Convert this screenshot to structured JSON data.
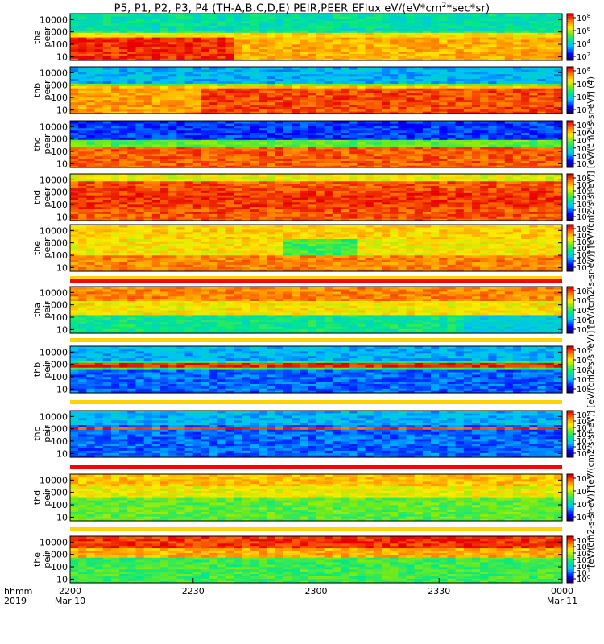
{
  "title": {
    "prefix": "P5, P1, P2, P3, P4 (TH-A,B,C,D,E) PEIR,PEER EFlux eV/(eV*cm",
    "sup": "2",
    "suffix": "*sec*sr)"
  },
  "colorbar_units": "[eV/(cm2-s-sr-eV)] [eV/(cm2-s-sr-eV)] [eV/(cm2-s-sr-eV)] [eV/(cm2-s-sr-eV)] [eV/(cm2-s-sr-eV)] [eV/(cm2-s-sr-eV)] (4)",
  "time_axis": {
    "row1_label": "hhmm",
    "row2_label": "2019",
    "ticks": [
      {
        "t": 0,
        "hhmm": "2200",
        "date": "Mar 10"
      },
      {
        "t": 30,
        "hhmm": "2230",
        "date": ""
      },
      {
        "t": 60,
        "hhmm": "2300",
        "date": ""
      },
      {
        "t": 90,
        "hhmm": "2330",
        "date": ""
      },
      {
        "t": 120,
        "hhmm": "0000",
        "date": "Mar 11"
      }
    ]
  },
  "chart_data": {
    "type": "heatmap",
    "x_units": "minutes after 2200 UT, 2019-03-10",
    "xlim": [
      0,
      120
    ],
    "ylim_eV": [
      5,
      30000
    ],
    "yscale": "log",
    "ytick_values": [
      10,
      100,
      1000,
      10000
    ],
    "ytick_labels": [
      "10",
      "100",
      "1000",
      "10000"
    ],
    "panels": [
      {
        "ylabel": [
          "tha",
          "peer"
        ],
        "cticks": [
          "10^8",
          "10^6",
          "10^4",
          "10^2"
        ],
        "profile": "peer_a"
      },
      {
        "ylabel": [
          "thb",
          "peer"
        ],
        "cticks": [
          "10^8",
          "10^6",
          "10^4",
          "10^2"
        ],
        "profile": "peer_b"
      },
      {
        "ylabel": [
          "thc",
          "peer"
        ],
        "cticks": [
          "10^8",
          "10^7",
          "10^6",
          "10^5",
          "10^4",
          "10^3"
        ],
        "profile": "peer_c"
      },
      {
        "ylabel": [
          "thd",
          "peer"
        ],
        "cticks": [
          "10^8",
          "10^7",
          "10^6",
          "10^5",
          "10^4",
          "10^3",
          "10^2"
        ],
        "profile": "peer_d"
      },
      {
        "ylabel": [
          "the",
          "peer"
        ],
        "cticks": [
          "10^8",
          "10^7",
          "10^6",
          "10^5",
          "10^4",
          "10^3",
          "10^2"
        ],
        "profile": "peer_e"
      },
      {
        "ylabel": [
          "tha",
          "peir"
        ],
        "cticks": [
          "10^8",
          "10^6",
          "10^4",
          "10^2",
          "10^0"
        ],
        "profile": "peir_a"
      },
      {
        "ylabel": [
          "thb",
          "peir"
        ],
        "cticks": [
          "10^8",
          "10^6",
          "10^4",
          "10^2",
          "10^0"
        ],
        "profile": "peir_b"
      },
      {
        "ylabel": [
          "thc",
          "peir"
        ],
        "cticks": [
          "10^7",
          "10^6",
          "10^5",
          "10^4",
          "10^3",
          "10^2",
          "10^1"
        ],
        "profile": "peir_c"
      },
      {
        "ylabel": [
          "thd",
          "peir"
        ],
        "cticks": [
          "10^8",
          "10^6",
          "10^4",
          "10^2"
        ],
        "profile": "peir_d"
      },
      {
        "ylabel": [
          "the",
          "peir"
        ],
        "cticks": [
          "10^8",
          "10^6",
          "10^4",
          "10^3",
          "10^2",
          "10^1",
          "10^0"
        ],
        "profile": "peir_e"
      }
    ]
  }
}
